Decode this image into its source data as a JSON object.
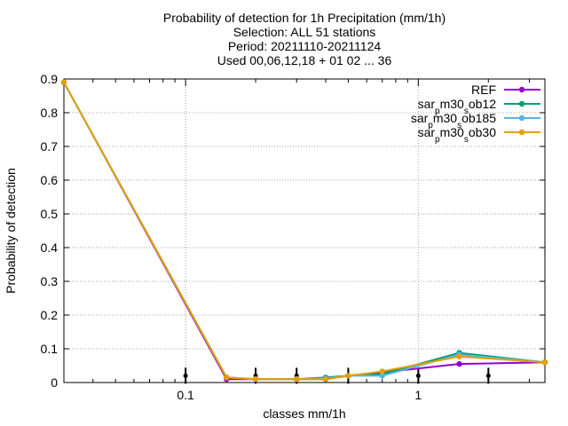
{
  "chart_data": {
    "type": "line",
    "title_lines": [
      "Probability of detection  for 1h Precipitation (mm/1h)",
      "Selection: ALL     51 stations",
      "Period: 20211110-20211124",
      "Used 00,06,12,18 + 01 02 ... 36"
    ],
    "xlabel": "classes mm/1h",
    "ylabel": "Probability of detection",
    "x_scale": "log",
    "xlim": [
      0.03,
      3.5
    ],
    "ylim": [
      0,
      0.9
    ],
    "x_ticks": [
      0.1,
      1
    ],
    "x_tick_labels": [
      "0.1",
      "1"
    ],
    "y_ticks": [
      0,
      0.1,
      0.2,
      0.3,
      0.4,
      0.5,
      0.6,
      0.7,
      0.8,
      0.9
    ],
    "y_tick_labels": [
      "0",
      "0.1",
      "0.2",
      "0.3",
      "0.4",
      "0.5",
      "0.6",
      "0.7",
      "0.8",
      "0.9"
    ],
    "grid": true,
    "legend_position": "top-right",
    "x": [
      0.03,
      0.15,
      0.2,
      0.3,
      0.4,
      0.5,
      0.7,
      1.5,
      3.5
    ],
    "series": [
      {
        "name": "REF",
        "color": "#9400d3",
        "values": [
          0.89,
          0.01,
          0.01,
          0.01,
          0.01,
          0.02,
          0.03,
          0.055,
          0.06
        ]
      },
      {
        "name": "sar_p m30_s ob12",
        "color": "#009e73",
        "values": [
          0.89,
          0.015,
          0.01,
          0.01,
          0.015,
          0.02,
          0.025,
          0.088,
          0.06
        ]
      },
      {
        "name": "sar_p m30_s ob185",
        "color": "#56b4e9",
        "values": [
          0.89,
          0.015,
          0.01,
          0.01,
          0.012,
          0.02,
          0.02,
          0.083,
          0.06
        ]
      },
      {
        "name": "sar_p m30_s ob30",
        "color": "#e69f00",
        "values": [
          0.89,
          0.015,
          0.01,
          0.01,
          0.01,
          0.02,
          0.033,
          0.077,
          0.06
        ]
      }
    ],
    "legend_display": [
      {
        "base": "REF",
        "parts": []
      },
      {
        "base": "sar",
        "parts": [
          [
            "p",
            "sub"
          ],
          [
            "m30",
            ""
          ],
          [
            "s",
            "sub"
          ],
          [
            "ob12",
            ""
          ]
        ]
      },
      {
        "base": "sar",
        "parts": [
          [
            "p",
            "sub"
          ],
          [
            "m30",
            ""
          ],
          [
            "s",
            "sub"
          ],
          [
            "ob185",
            ""
          ]
        ]
      },
      {
        "base": "sar",
        "parts": [
          [
            "p",
            "sub"
          ],
          [
            "m30",
            ""
          ],
          [
            "s",
            "sub"
          ],
          [
            "ob30",
            ""
          ]
        ]
      }
    ],
    "error_bars": [
      {
        "x": 0.1,
        "y": 0.02
      },
      {
        "x": 0.2,
        "y": 0.02
      },
      {
        "x": 0.3,
        "y": 0.02
      },
      {
        "x": 0.5,
        "y": 0.02
      },
      {
        "x": 1.0,
        "y": 0.02
      },
      {
        "x": 2.0,
        "y": 0.02
      }
    ]
  }
}
